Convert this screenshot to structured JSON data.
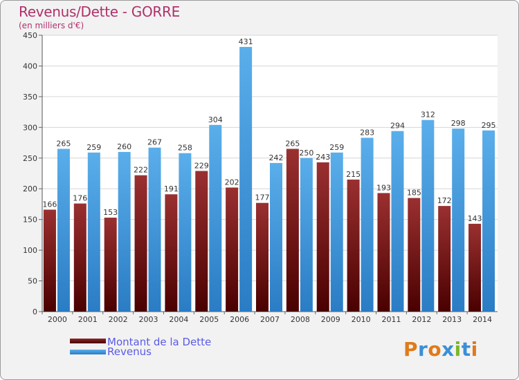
{
  "header": {
    "title": "Revenus/Dette - GORRE",
    "subtitle": "(en milliers d'€)"
  },
  "chart_data": {
    "type": "bar",
    "categories": [
      "2000",
      "2001",
      "2002",
      "2003",
      "2004",
      "2005",
      "2006",
      "2007",
      "2008",
      "2009",
      "2010",
      "2011",
      "2012",
      "2013",
      "2014"
    ],
    "series": [
      {
        "name": "Montant de la Dette",
        "values": [
          166,
          176,
          153,
          222,
          191,
          229,
          202,
          177,
          265,
          243,
          215,
          193,
          185,
          172,
          143
        ],
        "color": "#7a1010"
      },
      {
        "name": "Revenus",
        "values": [
          265,
          259,
          260,
          267,
          258,
          304,
          431,
          242,
          250,
          259,
          283,
          294,
          312,
          298,
          295
        ],
        "color": "#3d9be0"
      }
    ],
    "ylim": [
      0,
      450
    ],
    "yticks": [
      0,
      50,
      100,
      150,
      200,
      250,
      300,
      350,
      400,
      450
    ],
    "grid": true,
    "legend_position": "bottom-left"
  },
  "legend": {
    "items": [
      {
        "label": "Montant de la Dette",
        "color": "#5a0a0a"
      },
      {
        "label": "Revenus",
        "color": "#3d9be0"
      }
    ]
  },
  "logo": {
    "letters": [
      "P",
      "r",
      "o",
      "x",
      "i",
      "t",
      "i"
    ],
    "colors": [
      "#e07a1a",
      "#3a8fd8",
      "#e07a1a",
      "#3a8fd8",
      "#7ab82a",
      "#3a8fd8",
      "#e07a1a"
    ]
  }
}
